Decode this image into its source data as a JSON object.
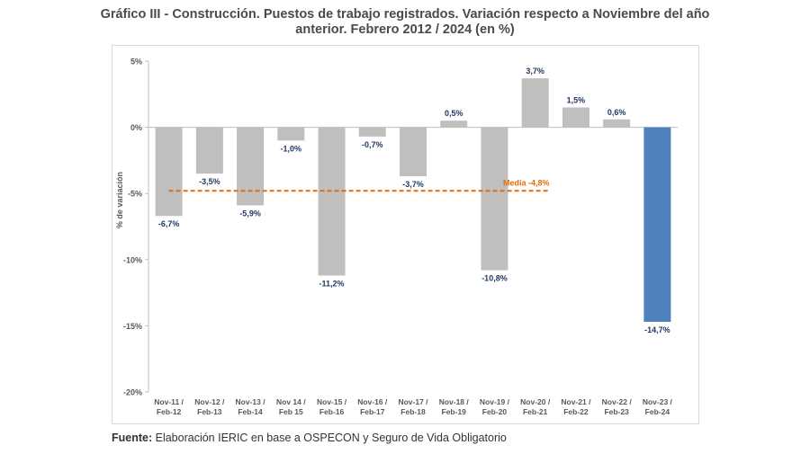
{
  "title_line1": "Gráfico III - Construcción. Puestos de trabajo registrados. Variación respecto a Noviembre del año",
  "title_line2": "anterior. Febrero 2012 / 2024 (en %)",
  "source_label": "Fuente:",
  "source_text": " Elaboración IERIC en base a OSPECON y Seguro de Vida Obligatorio",
  "colors": {
    "bar": "#bfbfbf",
    "highlight": "#4f81bd",
    "mean_line": "#e36c09",
    "label": "#1f3864",
    "axis": "#bfbfbf"
  },
  "chart_data": {
    "type": "bar",
    "ylabel": "% de variación",
    "ylim": [
      -20,
      5
    ],
    "yticks": [
      5,
      0,
      -5,
      -10,
      -15,
      -20
    ],
    "ytick_labels": [
      "5%",
      "0%",
      "-5%",
      "-10%",
      "-15%",
      "-20%"
    ],
    "categories": [
      [
        "Nov-11 /",
        "Feb-12"
      ],
      [
        "Nov-12 /",
        "Feb-13"
      ],
      [
        "Nov-13 /",
        "Feb-14"
      ],
      [
        "Nov 14 /",
        "Feb 15"
      ],
      [
        "Nov-15 /",
        "Feb-16"
      ],
      [
        "Nov-16 /",
        "Feb-17"
      ],
      [
        "Nov-17 /",
        "Feb-18"
      ],
      [
        "Nov-18 /",
        "Feb-19"
      ],
      [
        "Nov-19 /",
        "Feb-20"
      ],
      [
        "Nov-20 /",
        "Feb-21"
      ],
      [
        "Nov-21 /",
        "Feb-22"
      ],
      [
        "Nov-22 /",
        "Feb-23"
      ],
      [
        "Nov-23 /",
        "Feb-24"
      ]
    ],
    "values": [
      -6.7,
      -3.5,
      -5.9,
      -1.0,
      -11.2,
      -0.7,
      -3.7,
      0.5,
      -10.8,
      3.7,
      1.5,
      0.6,
      -14.7
    ],
    "data_labels": [
      "-6,7%",
      "-3,5%",
      "-5,9%",
      "-1,0%",
      "-11,2%",
      "-0,7%",
      "-3,7%",
      "0,5%",
      "-10,8%",
      "3,7%",
      "1,5%",
      "0,6%",
      "-14,7%"
    ],
    "highlight_index": 12,
    "mean": {
      "value": -4.8,
      "label": "Media -4,8%"
    }
  }
}
